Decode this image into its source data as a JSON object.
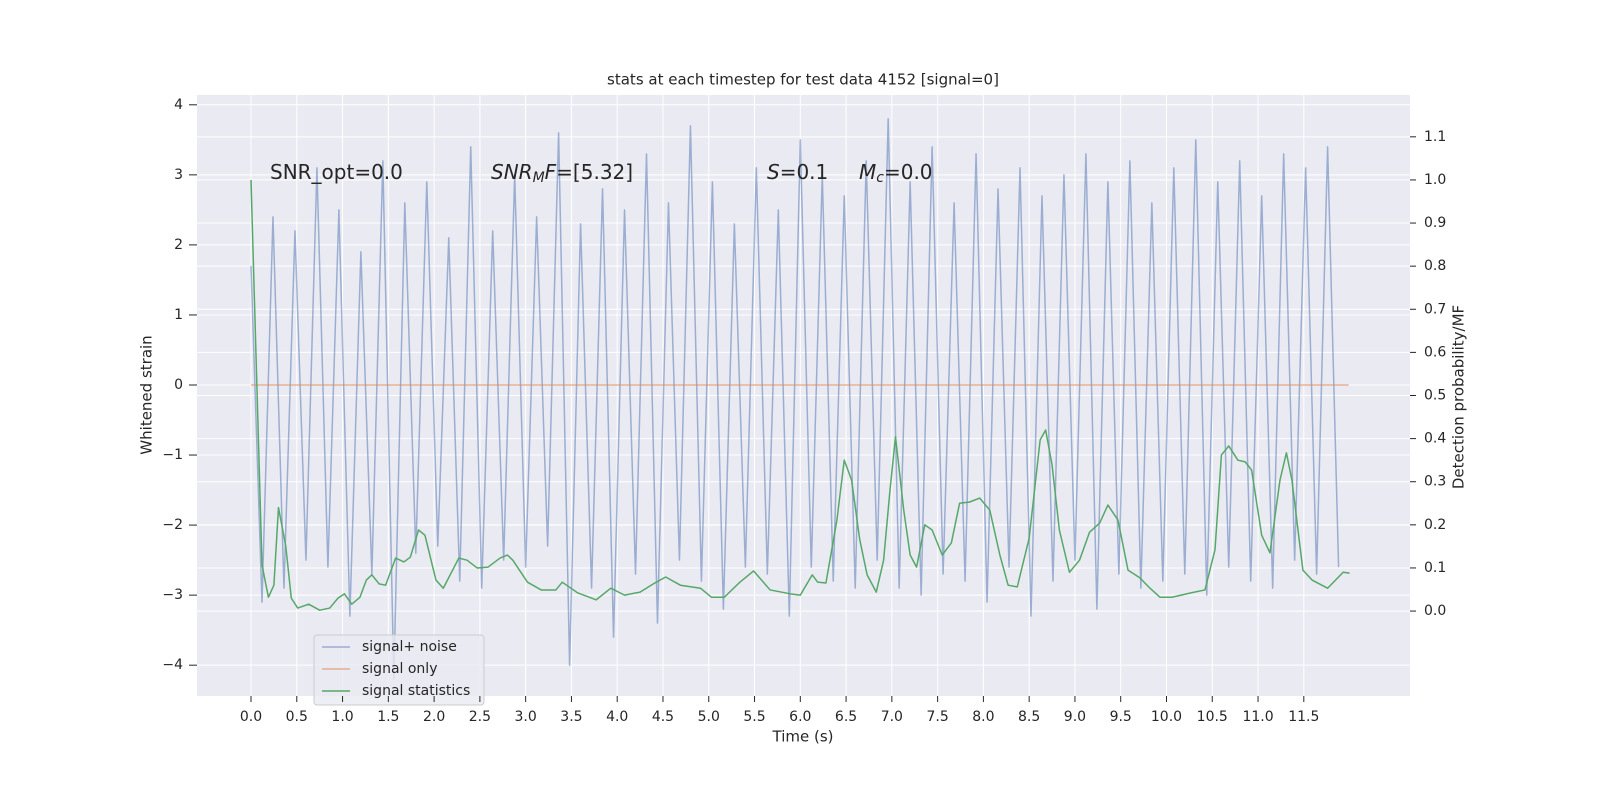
{
  "chart_data": {
    "type": "line",
    "title": "stats at each timestep for test data 4152 [signal=0]",
    "xlabel": "Time (s)",
    "ylabel": "Whitened strain",
    "y2label": "Detection probability/MF",
    "annotations": [
      [
        "SNR_opt=0.0"
      ],
      [
        "SNR",
        "M",
        "F",
        "=[5.32]"
      ],
      [
        "S",
        "=0.1"
      ],
      [
        "M",
        "c",
        "=0.0"
      ]
    ],
    "xlim": [
      -0.59,
      12.66
    ],
    "ylim": [
      -4.44,
      4.14
    ],
    "y2lim": [
      -0.197,
      1.197
    ],
    "xticks": [
      {
        "value": 0,
        "label": "0.0"
      },
      {
        "value": 0.5,
        "label": "0.5"
      },
      {
        "value": 1,
        "label": "1.0"
      },
      {
        "value": 1.5,
        "label": "1.5"
      },
      {
        "value": 2,
        "label": "2.0"
      },
      {
        "value": 2.5,
        "label": "2.5"
      },
      {
        "value": 3,
        "label": "3.0"
      },
      {
        "value": 3.5,
        "label": "3.5"
      },
      {
        "value": 4,
        "label": "4.0"
      },
      {
        "value": 4.5,
        "label": "4.5"
      },
      {
        "value": 5,
        "label": "5.0"
      },
      {
        "value": 5.5,
        "label": "5.5"
      },
      {
        "value": 6,
        "label": "6.0"
      },
      {
        "value": 6.5,
        "label": "6.5"
      },
      {
        "value": 7,
        "label": "7.0"
      },
      {
        "value": 7.5,
        "label": "7.5"
      },
      {
        "value": 8,
        "label": "8.0"
      },
      {
        "value": 8.5,
        "label": "8.5"
      },
      {
        "value": 9,
        "label": "9.0"
      },
      {
        "value": 9.5,
        "label": "9.5"
      },
      {
        "value": 10,
        "label": "10.0"
      },
      {
        "value": 10.5,
        "label": "10.5"
      },
      {
        "value": 11,
        "label": "11.0"
      },
      {
        "value": 11.5,
        "label": "11.5"
      }
    ],
    "yticks": [
      {
        "value": -4,
        "label": "−4"
      },
      {
        "value": -3,
        "label": "−3"
      },
      {
        "value": -2,
        "label": "−2"
      },
      {
        "value": -1,
        "label": "−1"
      },
      0,
      1,
      2,
      3,
      4
    ],
    "y2ticks": [
      {
        "value": 0,
        "label": "0.0"
      },
      {
        "value": 0.1,
        "label": "0.1"
      },
      {
        "value": 0.2,
        "label": "0.2"
      },
      {
        "value": 0.3,
        "label": "0.3"
      },
      {
        "value": 0.4,
        "label": "0.4"
      },
      {
        "value": 0.5,
        "label": "0.5"
      },
      {
        "value": 0.6,
        "label": "0.6"
      },
      {
        "value": 0.7,
        "label": "0.7"
      },
      {
        "value": 0.8,
        "label": "0.8"
      },
      {
        "value": 0.9,
        "label": "0.9"
      },
      {
        "value": 1,
        "label": "1.0"
      },
      {
        "value": 1.1,
        "label": "1.1"
      }
    ],
    "grid": true,
    "legend": "lower left",
    "series": [
      {
        "name": "signal+ noise",
        "color": "#4c72b0",
        "x": [
          0,
          0.12,
          0.24,
          0.36,
          0.48,
          0.6,
          0.72,
          0.84,
          0.96,
          1.08,
          1.2,
          1.32,
          1.44,
          1.56,
          1.68,
          1.8,
          1.92,
          2.04,
          2.16,
          2.28,
          2.4,
          2.52,
          2.64,
          2.76,
          2.88,
          3.0,
          3.12,
          3.24,
          3.36,
          3.48,
          3.6,
          3.72,
          3.84,
          3.96,
          4.08,
          4.2,
          4.32,
          4.44,
          4.56,
          4.68,
          4.8,
          4.92,
          5.04,
          5.16,
          5.28,
          5.4,
          5.52,
          5.64,
          5.76,
          5.88,
          6.0,
          6.12,
          6.24,
          6.36,
          6.48,
          6.6,
          6.72,
          6.84,
          6.96,
          7.08,
          7.2,
          7.32,
          7.44,
          7.56,
          7.68,
          7.8,
          7.92,
          8.04,
          8.16,
          8.28,
          8.4,
          8.52,
          8.64,
          8.76,
          8.88,
          9.0,
          9.12,
          9.24,
          9.36,
          9.48,
          9.6,
          9.72,
          9.84,
          9.96,
          10.08,
          10.2,
          10.32,
          10.44,
          10.56,
          10.68,
          10.8,
          10.92,
          11.04,
          11.16,
          11.28,
          11.4,
          11.52,
          11.64,
          11.76,
          11.88
        ],
        "values": [
          1.7,
          -3.1,
          2.4,
          -2.9,
          2.2,
          -2.5,
          3.1,
          -2.6,
          2.5,
          -3.3,
          1.9,
          -2.7,
          3.2,
          -4.2,
          2.6,
          -2.4,
          2.9,
          -2.3,
          2.1,
          -2.8,
          3.4,
          -2.9,
          2.2,
          -2.5,
          3.0,
          -2.6,
          2.4,
          -2.3,
          3.6,
          -4.0,
          2.3,
          -2.9,
          2.8,
          -3.6,
          2.5,
          -2.7,
          3.3,
          -3.4,
          2.6,
          -2.5,
          3.7,
          -2.8,
          2.9,
          -3.2,
          2.3,
          -2.6,
          3.1,
          -2.7,
          2.5,
          -3.3,
          3.5,
          -2.6,
          3.0,
          -2.8,
          2.7,
          -2.9,
          3.2,
          -2.5,
          3.8,
          -2.9,
          2.9,
          -3.0,
          3.4,
          -2.7,
          2.6,
          -2.8,
          3.3,
          -3.1,
          2.8,
          -2.6,
          3.1,
          -3.3,
          2.7,
          -2.8,
          3.0,
          -2.5,
          3.3,
          -3.2,
          2.9,
          -2.7,
          3.2,
          -2.9,
          2.6,
          -2.8,
          3.1,
          -2.7,
          3.5,
          -3.0,
          2.9,
          -2.6,
          3.2,
          -2.8,
          2.7,
          -2.9,
          3.3,
          -2.5,
          3.1,
          -2.7,
          3.4,
          -2.6
        ]
      },
      {
        "name": "signal only",
        "color": "#dd8452",
        "x": [
          0,
          11.99
        ],
        "values": [
          0,
          0
        ]
      },
      {
        "name": "signal statistics",
        "color": "#55a868",
        "axis": "y2",
        "x": [
          0,
          0.12,
          0.19,
          0.25,
          0.3,
          0.38,
          0.44,
          0.51,
          0.63,
          0.75,
          0.86,
          0.95,
          1.02,
          1.1,
          1.19,
          1.26,
          1.32,
          1.4,
          1.47,
          1.58,
          1.67,
          1.74,
          1.83,
          1.9,
          2.02,
          2.1,
          2.27,
          2.36,
          2.47,
          2.59,
          2.72,
          2.8,
          2.86,
          3.02,
          3.17,
          3.33,
          3.4,
          3.57,
          3.77,
          3.93,
          4.08,
          4.25,
          4.41,
          4.53,
          4.69,
          4.91,
          5.03,
          5.17,
          5.34,
          5.49,
          5.67,
          5.89,
          6.0,
          6.13,
          6.19,
          6.28,
          6.4,
          6.48,
          6.56,
          6.65,
          6.73,
          6.83,
          6.91,
          6.98,
          7.04,
          7.13,
          7.2,
          7.27,
          7.36,
          7.44,
          7.55,
          7.65,
          7.74,
          7.85,
          7.96,
          8.07,
          8.18,
          8.27,
          8.37,
          8.5,
          8.62,
          8.68,
          8.75,
          8.83,
          8.94,
          9.05,
          9.16,
          9.27,
          9.36,
          9.47,
          9.58,
          9.71,
          9.82,
          9.93,
          10.06,
          10.26,
          10.42,
          10.53,
          10.6,
          10.68,
          10.78,
          10.86,
          10.93,
          11.04,
          11.13,
          11.24,
          11.31,
          11.37,
          11.49,
          11.59,
          11.76,
          11.93,
          12.0
        ],
        "values": [
          1.0,
          0.107,
          0.032,
          0.06,
          0.24,
          0.15,
          0.03,
          0.007,
          0.016,
          0.002,
          0.007,
          0.03,
          0.04,
          0.016,
          0.032,
          0.072,
          0.084,
          0.063,
          0.06,
          0.123,
          0.114,
          0.125,
          0.188,
          0.176,
          0.072,
          0.053,
          0.123,
          0.118,
          0.1,
          0.102,
          0.123,
          0.13,
          0.118,
          0.067,
          0.049,
          0.049,
          0.067,
          0.042,
          0.026,
          0.053,
          0.037,
          0.044,
          0.065,
          0.079,
          0.06,
          0.053,
          0.032,
          0.032,
          0.067,
          0.093,
          0.049,
          0.04,
          0.037,
          0.084,
          0.067,
          0.065,
          0.211,
          0.35,
          0.304,
          0.165,
          0.084,
          0.044,
          0.118,
          0.281,
          0.404,
          0.234,
          0.13,
          0.102,
          0.2,
          0.188,
          0.13,
          0.158,
          0.25,
          0.253,
          0.262,
          0.234,
          0.13,
          0.06,
          0.056,
          0.169,
          0.397,
          0.42,
          0.339,
          0.188,
          0.09,
          0.118,
          0.183,
          0.204,
          0.246,
          0.211,
          0.095,
          0.077,
          0.053,
          0.032,
          0.032,
          0.042,
          0.049,
          0.142,
          0.362,
          0.383,
          0.35,
          0.346,
          0.327,
          0.176,
          0.135,
          0.304,
          0.367,
          0.304,
          0.095,
          0.072,
          0.053,
          0.09,
          0.088
        ]
      }
    ]
  }
}
